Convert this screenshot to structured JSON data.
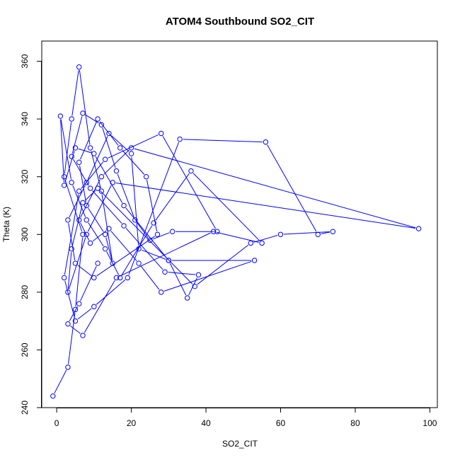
{
  "chart_data": {
    "type": "line",
    "title": "ATOM4 Southbound SO2_CIT",
    "xlabel": "SO2_CIT",
    "ylabel": "Theta (K)",
    "xlim": [
      -4,
      102
    ],
    "ylim": [
      240,
      367
    ],
    "x_ticks": [
      "0",
      "20",
      "40",
      "60",
      "80",
      "100"
    ],
    "y_ticks": [
      "240",
      "260",
      "280",
      "300",
      "320",
      "340",
      "360"
    ],
    "grid": false,
    "series_color": "#0000ff",
    "series": [
      {
        "markers": "open-circle",
        "x": [
          -1,
          3,
          5,
          7,
          2,
          4,
          6,
          9,
          12,
          15,
          13,
          8,
          6,
          11,
          17,
          24,
          27,
          10,
          5,
          3,
          8,
          14,
          20,
          22,
          30,
          35,
          38,
          29,
          18,
          9,
          4,
          7,
          12,
          16,
          21,
          25,
          31,
          43,
          28,
          13,
          6,
          2,
          5,
          10,
          19,
          33,
          56,
          70,
          74,
          60,
          52,
          37,
          11,
          7,
          4,
          3,
          8,
          15,
          97,
          20,
          12,
          6,
          9,
          14,
          22,
          28,
          53,
          30,
          18,
          10,
          5,
          2,
          1,
          4,
          8,
          13,
          17,
          26,
          36,
          55,
          42,
          16,
          7,
          3,
          6,
          11
        ],
        "y": [
          244,
          254,
          274,
          300,
          320,
          340,
          358,
          330,
          315,
          290,
          300,
          310,
          325,
          340,
          330,
          320,
          300,
          285,
          290,
          305,
          318,
          335,
          328,
          295,
          291,
          278,
          286,
          287,
          303,
          316,
          327,
          342,
          338,
          322,
          305,
          298,
          301,
          301,
          335,
          326,
          315,
          285,
          270,
          275,
          285,
          333,
          332,
          300,
          301,
          300,
          297,
          282,
          316,
          311,
          295,
          280,
          300,
          318,
          302,
          330,
          320,
          305,
          297,
          302,
          290,
          280,
          291,
          291,
          310,
          328,
          330,
          317,
          341,
          318,
          305,
          295,
          285,
          304,
          322,
          297,
          301,
          285,
          265,
          269,
          276,
          290
        ]
      }
    ]
  }
}
